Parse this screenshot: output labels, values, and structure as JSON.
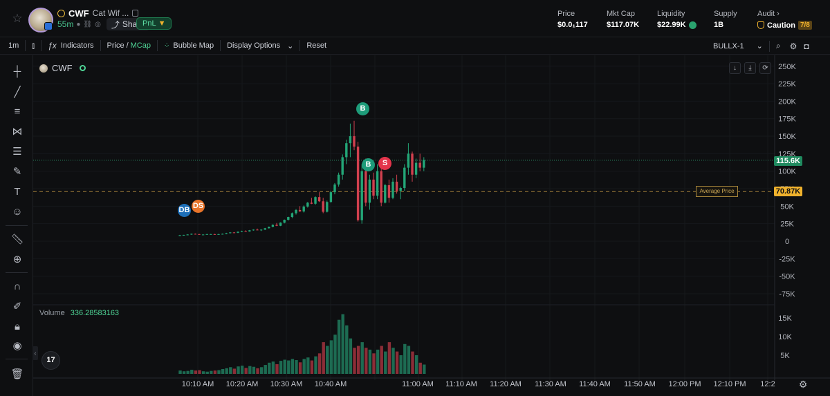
{
  "header": {
    "ticker": "CWF",
    "name": "Cat Wif ...",
    "age": "55m",
    "share_label": "Share",
    "pnl_label": "PnL",
    "stats": [
      {
        "label": "Price",
        "value": "$0.0₁117"
      },
      {
        "label": "Mkt Cap",
        "value": "$117.07K"
      },
      {
        "label": "Liquidity",
        "value": "$22.99K"
      },
      {
        "label": "Supply",
        "value": "1B"
      }
    ],
    "audit": {
      "label": "Audit",
      "status": "Caution",
      "score": "7/8"
    }
  },
  "toolbar": {
    "interval": "1m",
    "indicators": "Indicators",
    "price": "Price",
    "slash": "/",
    "mcap": "MCap",
    "bubble_map": "Bubble Map",
    "display_options": "Display Options",
    "reset": "Reset",
    "bullx": "BULLX-1"
  },
  "chart": {
    "symbol": "CWF",
    "volume_label": "Volume",
    "volume_value": "336.28583163",
    "current_value_label": "115.6K",
    "average_value_label": "70.87K",
    "average_box_label": "Average Price",
    "markers": [
      {
        "label": "DB",
        "color": "#1d6fb8"
      },
      {
        "label": "DS",
        "color": "#e8742a"
      },
      {
        "label": "B",
        "color": "#1e9c7a"
      },
      {
        "label": "B",
        "color": "#1e9c7a"
      },
      {
        "label": "S",
        "color": "#e3344b"
      }
    ],
    "tv_logo": "17"
  },
  "chart_data": {
    "type": "candlestick",
    "price_axis_ticks": [
      "250K",
      "225K",
      "200K",
      "175K",
      "150K",
      "125K",
      "100K",
      "75K",
      "50K",
      "25K",
      "0",
      "-25K",
      "-50K",
      "-75K"
    ],
    "volume_axis_ticks": [
      "15K",
      "10K",
      "5K"
    ],
    "time_axis_ticks": [
      "10:10 AM",
      "10:20 AM",
      "10:30 AM",
      "10:40 AM",
      "11:00 AM",
      "11:10 AM",
      "11:20 AM",
      "11:30 AM",
      "11:40 AM",
      "11:50 AM",
      "12:00 PM",
      "12:10 PM",
      "12:2"
    ],
    "current_value": 115.6,
    "average_value": 70.87,
    "candles": [
      [
        8,
        9,
        7.5,
        8.5,
        0.9
      ],
      [
        8.5,
        9,
        8,
        9,
        0.7
      ],
      [
        9,
        10,
        8.5,
        9.5,
        0.8
      ],
      [
        9.5,
        11,
        9,
        10.5,
        1.1
      ],
      [
        10.5,
        11,
        9.5,
        10,
        0.9
      ],
      [
        10,
        10.5,
        9,
        9.5,
        1.0
      ],
      [
        9.5,
        10,
        9,
        9.5,
        0.7
      ],
      [
        9.5,
        10.5,
        9,
        10,
        0.6
      ],
      [
        10,
        10.5,
        9.5,
        10,
        0.8
      ],
      [
        10,
        10.5,
        9,
        9.5,
        0.9
      ],
      [
        9.5,
        10.5,
        9,
        10,
        1.0
      ],
      [
        10,
        11,
        9.5,
        10.5,
        1.3
      ],
      [
        10.5,
        12,
        10,
        11.5,
        1.5
      ],
      [
        11.5,
        13,
        11,
        12.5,
        1.8
      ],
      [
        12.5,
        13,
        11.5,
        12,
        1.4
      ],
      [
        12,
        14,
        11.5,
        13.5,
        2.0
      ],
      [
        13.5,
        15,
        13,
        14.5,
        2.2
      ],
      [
        14.5,
        15.5,
        13.5,
        14,
        1.6
      ],
      [
        14,
        16,
        13.5,
        15.5,
        2.1
      ],
      [
        15.5,
        17,
        15,
        16.5,
        1.9
      ],
      [
        16.5,
        18,
        15.5,
        15.5,
        1.5
      ],
      [
        15.5,
        17,
        14.5,
        16.5,
        1.8
      ],
      [
        16.5,
        19,
        16,
        18.5,
        2.4
      ],
      [
        18.5,
        21,
        18,
        20.5,
        3.0
      ],
      [
        20.5,
        24,
        20,
        23.5,
        3.3
      ],
      [
        23.5,
        26,
        21.5,
        22,
        2.6
      ],
      [
        22,
        27,
        21.5,
        26.5,
        3.5
      ],
      [
        26.5,
        31,
        25.5,
        30.5,
        3.8
      ],
      [
        30.5,
        35,
        29.5,
        34.5,
        3.6
      ],
      [
        34.5,
        41,
        33,
        40,
        4.0
      ],
      [
        40,
        46,
        38,
        44.5,
        3.7
      ],
      [
        44.5,
        50,
        42,
        42.5,
        3.1
      ],
      [
        42.5,
        51,
        41,
        49.5,
        4.0
      ],
      [
        49.5,
        56,
        48,
        55,
        4.4
      ],
      [
        55,
        62,
        53,
        53.5,
        3.6
      ],
      [
        53.5,
        64,
        52,
        63,
        4.7
      ],
      [
        63,
        70,
        56,
        57,
        5.5
      ],
      [
        57,
        62,
        40,
        42,
        8.5
      ],
      [
        42,
        58,
        41,
        56,
        7.5
      ],
      [
        56,
        72,
        55,
        70,
        9.0
      ],
      [
        70,
        83,
        67,
        81,
        10.5
      ],
      [
        81,
        98,
        78,
        95,
        14.5
      ],
      [
        95,
        124,
        88,
        120,
        16.0
      ],
      [
        120,
        145,
        110,
        140,
        13.0
      ],
      [
        140,
        168,
        120,
        150,
        9.5
      ],
      [
        150,
        172,
        130,
        135,
        7.0
      ],
      [
        135,
        142,
        28,
        30,
        7.5
      ],
      [
        30,
        110,
        25,
        100,
        8.5
      ],
      [
        100,
        118,
        50,
        55,
        7.0
      ],
      [
        55,
        95,
        45,
        88,
        6.5
      ],
      [
        88,
        98,
        60,
        65,
        5.5
      ],
      [
        65,
        110,
        60,
        100,
        6.5
      ],
      [
        100,
        104,
        50,
        55,
        7.5
      ],
      [
        55,
        82,
        54,
        80,
        6.0
      ],
      [
        80,
        88,
        55,
        62,
        8.5
      ],
      [
        62,
        90,
        60,
        85,
        7.0
      ],
      [
        85,
        95,
        68,
        72,
        6.0
      ],
      [
        72,
        78,
        60,
        76,
        5.0
      ],
      [
        76,
        110,
        72,
        105,
        8.0
      ],
      [
        105,
        140,
        95,
        125,
        7.5
      ],
      [
        125,
        128,
        85,
        95,
        6.0
      ],
      [
        95,
        118,
        90,
        112,
        5.0
      ],
      [
        112,
        125,
        100,
        105,
        3.0
      ],
      [
        105,
        120,
        100,
        116,
        2.5
      ]
    ]
  }
}
